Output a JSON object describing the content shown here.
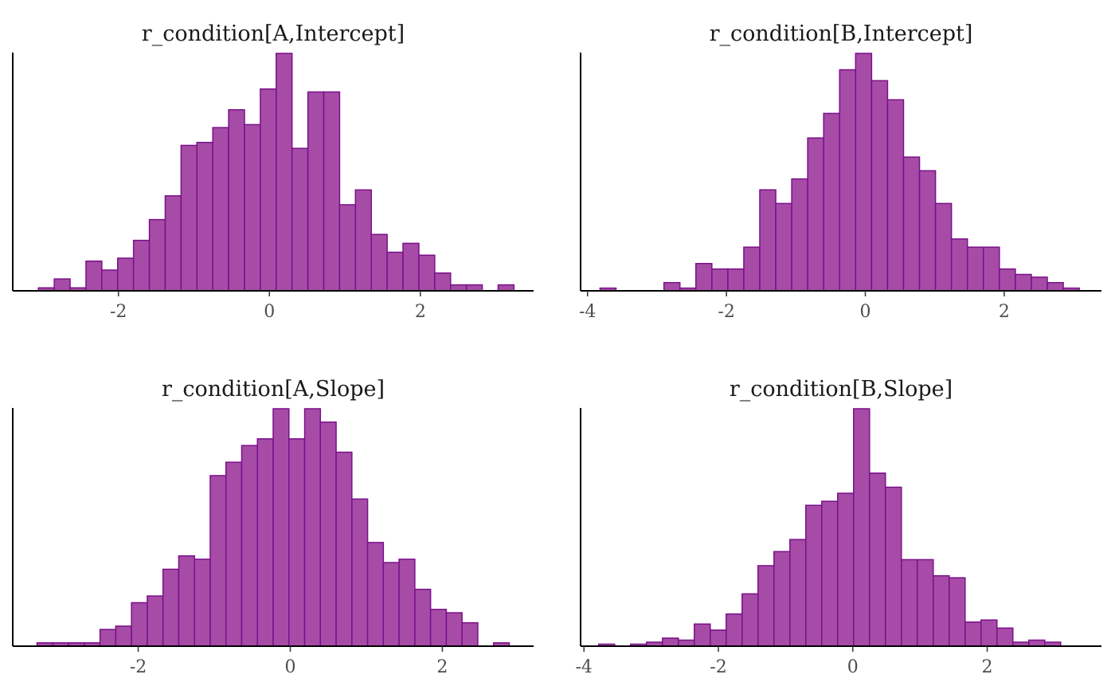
{
  "colors": {
    "bar_fill": "#a64ca6",
    "bar_stroke": "#7a0f8a",
    "axis": "#000000",
    "tick_text": "#4d4d4d",
    "title_text": "#1a1a1a"
  },
  "chart_data": [
    {
      "type": "bar",
      "subtype": "histogram",
      "title": "r_condition[A,Intercept]",
      "xlabel": "",
      "ylabel": "",
      "bin_width": 0.21,
      "bin_start": -3.06,
      "counts": [
        1,
        4,
        1,
        10,
        7,
        11,
        17,
        24,
        32,
        49,
        50,
        55,
        61,
        56,
        68,
        80,
        48,
        67,
        67,
        29,
        34,
        19,
        13,
        16,
        12,
        6,
        2,
        2,
        0,
        2
      ],
      "xlim": [
        -3.4,
        3.5
      ],
      "xticks": [
        -2,
        0,
        2
      ],
      "xtick_labels": [
        "-2",
        "0",
        "2"
      ]
    },
    {
      "type": "bar",
      "subtype": "histogram",
      "title": "r_condition[B,Intercept]",
      "xlabel": "",
      "ylabel": "",
      "bin_width": 0.23,
      "bin_start": -3.82,
      "counts": [
        1,
        0,
        0,
        0,
        3,
        1,
        10,
        8,
        8,
        16,
        37,
        32,
        41,
        56,
        65,
        81,
        87,
        77,
        70,
        49,
        44,
        32,
        19,
        16,
        16,
        8,
        6,
        5,
        3,
        1
      ],
      "xlim": [
        -4.1,
        3.4
      ],
      "xticks": [
        -4,
        -2,
        0,
        2
      ],
      "xtick_labels": [
        "-4",
        "-2",
        "0",
        "2"
      ]
    },
    {
      "type": "bar",
      "subtype": "histogram",
      "title": "r_condition[A,Slope]",
      "xlabel": "",
      "ylabel": "",
      "bin_width": 0.207,
      "bin_start": -3.33,
      "counts": [
        1,
        1,
        1,
        1,
        5,
        6,
        13,
        15,
        23,
        27,
        26,
        51,
        55,
        60,
        62,
        71,
        62,
        71,
        67,
        58,
        44,
        31,
        25,
        26,
        17,
        11,
        10,
        7,
        0,
        1
      ],
      "xlim": [
        -3.65,
        3.2
      ],
      "xticks": [
        -2,
        0,
        2
      ],
      "xtick_labels": [
        "-2",
        "0",
        "2"
      ]
    },
    {
      "type": "bar",
      "subtype": "histogram",
      "title": "r_condition[B,Slope]",
      "xlabel": "",
      "ylabel": "",
      "bin_width": 0.237,
      "bin_start": -3.78,
      "counts": [
        1,
        0,
        1,
        2,
        4,
        3,
        11,
        8,
        16,
        26,
        40,
        47,
        53,
        70,
        72,
        76,
        118,
        86,
        79,
        43,
        43,
        35,
        34,
        12,
        13,
        9,
        2,
        3,
        2,
        0
      ],
      "xlim": [
        -4.05,
        3.7
      ],
      "xticks": [
        -4,
        -2,
        0,
        2
      ],
      "xtick_labels": [
        "-4",
        "-2",
        "0",
        "2"
      ]
    }
  ]
}
